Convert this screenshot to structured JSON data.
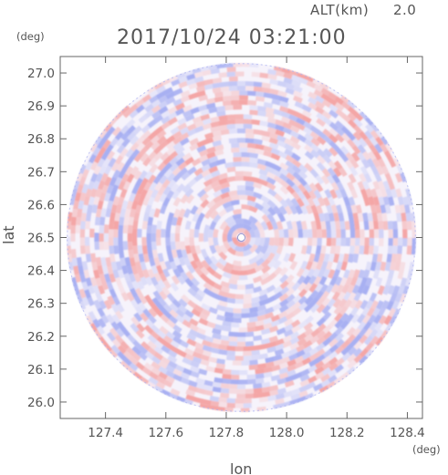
{
  "header": {
    "altitude_label": "ALT(km)",
    "altitude_value": "2.0",
    "timestamp": "2017/10/24 03:21:00"
  },
  "axes": {
    "x_label": "lon",
    "y_label": "lat",
    "x_unit": "(deg)",
    "y_unit": "(deg)",
    "x_range": [
      127.25,
      128.45
    ],
    "y_range": [
      25.95,
      27.05
    ],
    "x_ticks": [
      "127.4",
      "127.6",
      "127.8",
      "128.0",
      "128.2",
      "128.4"
    ],
    "y_ticks": [
      "26.0",
      "26.1",
      "26.2",
      "26.3",
      "26.4",
      "26.5",
      "26.6",
      "26.7",
      "26.8",
      "26.9",
      "27.0"
    ]
  },
  "radar": {
    "center_lon": 127.85,
    "center_lat": 26.5,
    "radius_deg_lat": 0.53,
    "colors": {
      "positive": "#f4a6a6",
      "negative": "#a8b0f2",
      "neutral": "#f6f3fb"
    }
  }
}
